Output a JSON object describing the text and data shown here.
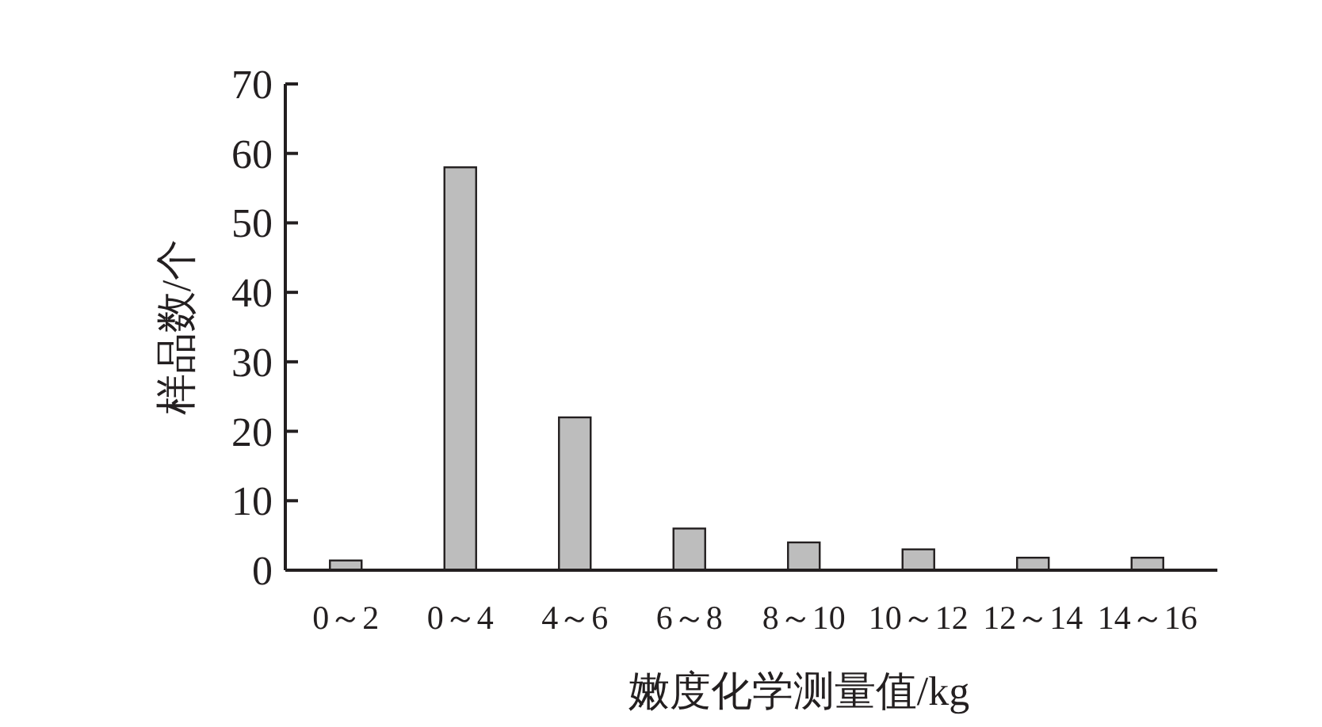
{
  "chart_data": {
    "type": "bar",
    "xlabel": "嫩度化学测量值/kg",
    "ylabel": "样品数/个",
    "categories": [
      "0～2",
      "0～4",
      "4～6",
      "6～8",
      "8～10",
      "10～12",
      "12～14",
      "14～16"
    ],
    "values": [
      1.4,
      58,
      22,
      6,
      4,
      3,
      1.8,
      1.8
    ],
    "color": "#bdbdbd",
    "ylim": [
      0,
      70
    ],
    "yticks": [
      0,
      10,
      20,
      30,
      40,
      50,
      60,
      70
    ]
  }
}
